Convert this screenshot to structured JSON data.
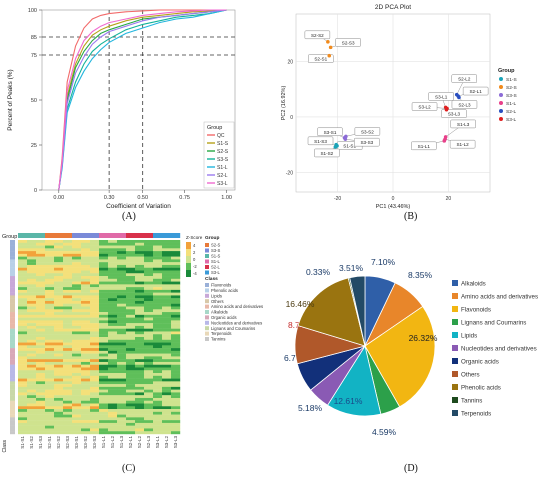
{
  "chart_data": [
    {
      "panel": "A",
      "type": "line",
      "xlabel": "Coefficient of Variation",
      "ylabel": "Percent of Peaks (%)",
      "xticks": [
        "0.00",
        "0.30",
        "0.50",
        "0.75",
        "1.00"
      ],
      "yticks": [
        "0",
        "25",
        "50",
        "75",
        "85",
        "100"
      ],
      "xlim": [
        -0.1,
        1.05
      ],
      "ylim": [
        0,
        100
      ],
      "reference_lines": {
        "x": [
          0.3,
          0.5
        ],
        "y": [
          75,
          85
        ]
      },
      "legend": {
        "title": "Group",
        "position": "bottom-right"
      },
      "x": [
        0,
        0.02,
        0.05,
        0.1,
        0.15,
        0.2,
        0.25,
        0.3,
        0.4,
        0.5,
        0.6,
        0.7,
        0.8,
        0.9,
        1.0
      ],
      "series": [
        {
          "name": "QC",
          "color": "#f26a6a",
          "values": [
            0,
            18,
            60,
            80,
            90,
            95,
            97,
            98,
            99,
            99.5,
            100,
            100,
            100,
            100,
            100
          ]
        },
        {
          "name": "S1-S",
          "color": "#b6a21a",
          "values": [
            0,
            15,
            52,
            70,
            80,
            86,
            89,
            91,
            94,
            96,
            97,
            98,
            99,
            99.5,
            100
          ]
        },
        {
          "name": "S2-S",
          "color": "#27a844",
          "values": [
            0,
            14,
            50,
            68,
            77,
            83,
            87,
            89,
            92,
            95,
            96,
            97,
            98,
            99,
            100
          ]
        },
        {
          "name": "S3-S",
          "color": "#13b39a",
          "values": [
            0,
            13,
            45,
            60,
            70,
            77,
            81,
            84,
            89,
            92,
            94,
            96,
            97,
            98,
            100
          ]
        },
        {
          "name": "S1-L",
          "color": "#22b5dd",
          "values": [
            0,
            12,
            43,
            57,
            66,
            73,
            78,
            82,
            87,
            90,
            93,
            95,
            96,
            98,
            100
          ]
        },
        {
          "name": "S2-L",
          "color": "#9b7bf0",
          "values": [
            0,
            14,
            48,
            65,
            74,
            81,
            85,
            88,
            91,
            94,
            96,
            97,
            98,
            99,
            100
          ]
        },
        {
          "name": "S3-L",
          "color": "#f06ad0",
          "values": [
            0,
            16,
            55,
            73,
            83,
            88,
            91,
            93,
            95,
            97,
            98,
            99,
            99.5,
            100,
            100
          ]
        }
      ]
    },
    {
      "panel": "B",
      "type": "scatter",
      "title": "2D PCA Plot",
      "xlabel": "PC1 (43.46%)",
      "ylabel": "PC2 (16.92%)",
      "xticks": [
        "-20",
        "0",
        "20"
      ],
      "yticks": [
        "20",
        "0",
        "-20"
      ],
      "xlim": [
        -35,
        35
      ],
      "ylim": [
        -27,
        37
      ],
      "legend": {
        "title": "Group",
        "position": "right"
      },
      "series": [
        {
          "name": "S1-S",
          "color": "#1aa4b8",
          "points": [
            {
              "label": "S1-S1",
              "x": -20.5,
              "y": -10
            },
            {
              "label": "S1-S2",
              "x": -20.8,
              "y": -10.8
            },
            {
              "label": "S1-S3",
              "x": -20.2,
              "y": -10.4
            }
          ]
        },
        {
          "name": "S2-S",
          "color": "#f08a1c",
          "points": [
            {
              "label": "S2-S1",
              "x": -23,
              "y": 22
            },
            {
              "label": "S2-S2",
              "x": -23.5,
              "y": 27
            },
            {
              "label": "S2-S3",
              "x": -22.5,
              "y": 25
            }
          ]
        },
        {
          "name": "S3-S",
          "color": "#8c6bd6",
          "points": [
            {
              "label": "S3-S1",
              "x": -17.5,
              "y": -7.5
            },
            {
              "label": "S3-S2",
              "x": -17,
              "y": -7
            },
            {
              "label": "S3-S3",
              "x": -17.2,
              "y": -8
            }
          ]
        },
        {
          "name": "S1-L",
          "color": "#e8408a",
          "points": [
            {
              "label": "S1-L1",
              "x": 18.5,
              "y": -8.6
            },
            {
              "label": "S1-L2",
              "x": 18.8,
              "y": -8
            },
            {
              "label": "S1-L3",
              "x": 19,
              "y": -7.2
            }
          ]
        },
        {
          "name": "S2-L",
          "color": "#2a4fc0",
          "points": [
            {
              "label": "S2-L1",
              "x": 23.5,
              "y": 7.5
            },
            {
              "label": "S2-L2",
              "x": 23,
              "y": 8
            },
            {
              "label": "S2-L3",
              "x": 23.8,
              "y": 7
            }
          ]
        },
        {
          "name": "S3-L",
          "color": "#e02020",
          "points": [
            {
              "label": "S3-L1",
              "x": 19,
              "y": 3.4
            },
            {
              "label": "S3-L2",
              "x": 19.5,
              "y": 3
            },
            {
              "label": "S3-L3",
              "x": 19.3,
              "y": 2.6
            }
          ]
        }
      ]
    },
    {
      "panel": "C",
      "type": "heatmap",
      "columns": [
        "S1-S1",
        "S1-S2",
        "S1-S3",
        "S2-S1",
        "S2-S2",
        "S2-S3",
        "S3-S1",
        "S3-S2",
        "S3-S3",
        "S1-L1",
        "S1-L2",
        "S1-L3",
        "S2-L1",
        "S2-L2",
        "S2-L3",
        "S3-L1",
        "S3-L2",
        "S3-L3"
      ],
      "row_annotation_label": "Class",
      "col_annotation_label": "Group",
      "colorbar": {
        "title": "Z-Score",
        "ticks": [
          "4",
          "2",
          "0",
          "-2",
          "-4"
        ],
        "colors": [
          "#f2a23a",
          "#f4e07a",
          "#cfe38e",
          "#5fbf5a",
          "#1a8a3a"
        ]
      },
      "group_legend": {
        "title": "Group",
        "items": [
          {
            "name": "S2-S",
            "color": "#e87a3a"
          },
          {
            "name": "S3-S",
            "color": "#7a8ad8"
          },
          {
            "name": "S1-S",
            "color": "#5ab6a8"
          },
          {
            "name": "S1-L",
            "color": "#e06aa8"
          },
          {
            "name": "S2-L",
            "color": "#d8304a"
          },
          {
            "name": "S3-L",
            "color": "#3a9ad8"
          }
        ]
      },
      "class_legend": {
        "title": "Class",
        "items": [
          {
            "name": "Flavonoids",
            "color": "#9ab0d8"
          },
          {
            "name": "Phenolic acids",
            "color": "#b8d0e8"
          },
          {
            "name": "Lipids",
            "color": "#c8a8d8"
          },
          {
            "name": "Others",
            "color": "#d8c8a8"
          },
          {
            "name": "Amino acids and derivatives",
            "color": "#e8b8a8"
          },
          {
            "name": "Alkaloids",
            "color": "#a8d8c8"
          },
          {
            "name": "Organic acids",
            "color": "#d8a8b8"
          },
          {
            "name": "Nucleotides and derivatives",
            "color": "#b8b8e8"
          },
          {
            "name": "Lignans and Coumarins",
            "color": "#c8d8a8"
          },
          {
            "name": "Terpenoids",
            "color": "#e8d8b8"
          },
          {
            "name": "Tannins",
            "color": "#c8c8c8"
          }
        ]
      }
    },
    {
      "panel": "D",
      "type": "pie",
      "categories": [
        "Alkaloids",
        "Amino acids and derivatives",
        "Flavonoids",
        "Lignans and Coumarins",
        "Lipids",
        "Nucleotides and derivatives",
        "Organic acids",
        "Others",
        "Phenolic acids",
        "Tannins",
        "Terpenoids"
      ],
      "values": [
        7.1,
        8.35,
        26.32,
        4.59,
        12.61,
        5.18,
        6.77,
        8.77,
        16.46,
        0.33,
        3.51
      ],
      "labels": [
        "7.10%",
        "8.35%",
        "26.32%",
        "4.59%",
        "12.61%",
        "5.18%",
        "6.77%",
        "8.77%",
        "16.46%",
        "0.33%",
        "3.51%"
      ],
      "colors": [
        "#2f5fa8",
        "#e8862a",
        "#f2b612",
        "#2ca04a",
        "#12b3c4",
        "#8a5ab4",
        "#12307a",
        "#b0582a",
        "#9a7410",
        "#1e4a1e",
        "#234a66"
      ],
      "legend": {
        "position": "right"
      }
    }
  ],
  "panel_labels": {
    "A": "(A)",
    "B": "(B)",
    "C": "(C)",
    "D": "(D)"
  }
}
